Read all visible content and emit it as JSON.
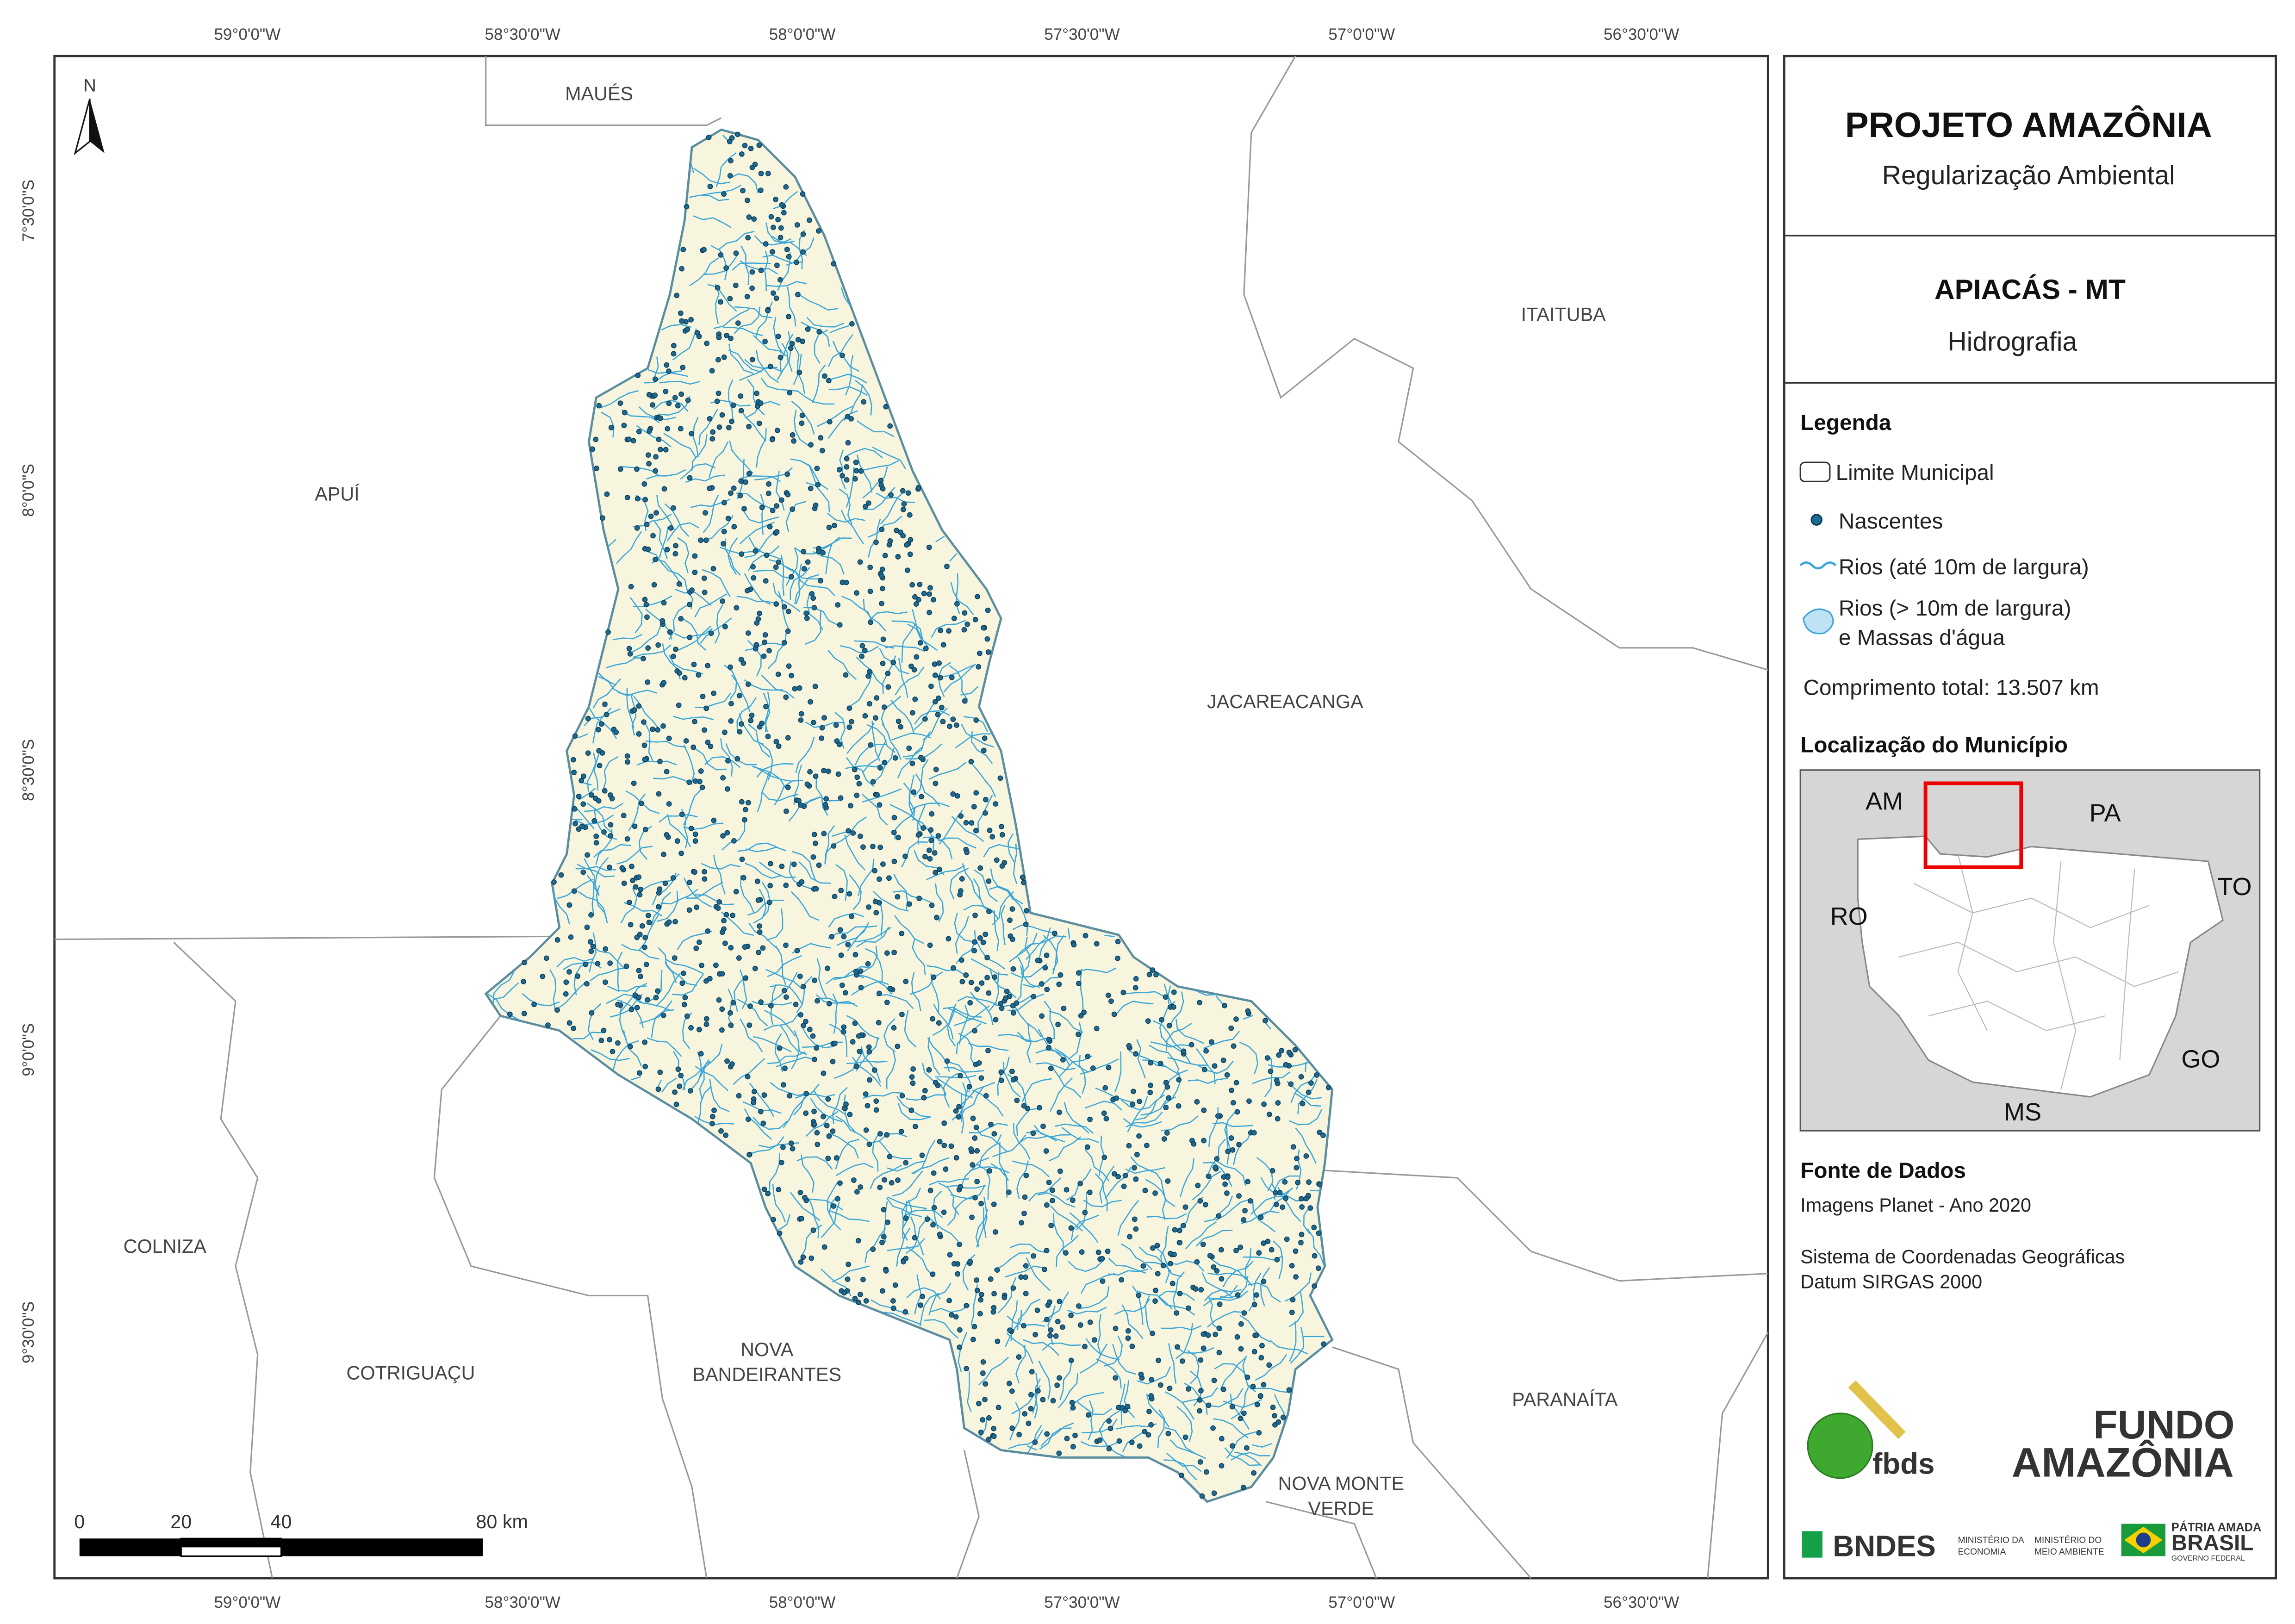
{
  "map": {
    "north": "N",
    "x_labels": [
      "59°0'0\"W",
      "58°30'0\"W",
      "58°0'0\"W",
      "57°30'0\"W",
      "57°0'0\"W",
      "56°30'0\"W"
    ],
    "y_labels": [
      "7°30'0\"S",
      "8°0'0\"S",
      "8°30'0\"S",
      "9°0'0\"S",
      "9°30'0\"S"
    ],
    "places": [
      [
        "MAUÉS"
      ],
      [
        "APUÍ"
      ],
      [
        "ITAITUBA"
      ],
      [
        "JACAREACANGA"
      ],
      [
        "COLNIZA"
      ],
      [
        "COTRIGUAÇU"
      ],
      [
        "NOVA",
        "BANDEIRANTES"
      ],
      [
        "NOVA MONTE",
        "VERDE"
      ],
      [
        "PARANAÍTA"
      ]
    ],
    "scale": [
      "0",
      "20",
      "40",
      "80 km"
    ]
  },
  "header": {
    "title": "PROJETO AMAZÔNIA",
    "subtitle": "Regularização Ambiental"
  },
  "municipality": {
    "name": "APIACÁS - MT",
    "theme": "Hidrografia"
  },
  "legend": {
    "title": "Legenda",
    "items": [
      "Limite Municipal",
      "Nascentes",
      "Rios (até 10m de largura)",
      [
        "Rios (> 10m de largura)",
        "e Massas d'água"
      ]
    ],
    "total": "Comprimento total: 13.507 km"
  },
  "location": {
    "title": "Localização do Município",
    "states": [
      "AM",
      "PA",
      "RO",
      "TO",
      "GO",
      "MS"
    ]
  },
  "sources": {
    "title": "Fonte de Dados",
    "lines": [
      "Imagens Planet - Ano 2020",
      "Sistema de Coordenadas Geográficas",
      "Datum SIRGAS 2000"
    ]
  },
  "logos": {
    "fbds": "fbds",
    "fundo": [
      "FUNDO",
      "AMAZÔNIA"
    ],
    "bndes": "BNDES",
    "min_economia": [
      "MINISTÉRIO DA",
      "ECONOMIA"
    ],
    "min_meio": [
      "MINISTÉRIO DO",
      "MEIO AMBIENTE"
    ],
    "gov": [
      "PÁTRIA AMADA",
      "BRASIL",
      "GOVERNO FEDERAL"
    ]
  }
}
